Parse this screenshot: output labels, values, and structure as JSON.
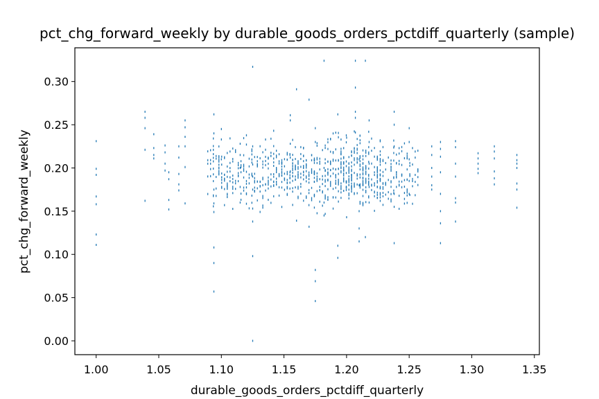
{
  "chart_data": {
    "type": "scatter",
    "title": "pct_chg_forward_weekly by durable_goods_orders_pctdiff_quarterly (sample)",
    "xlabel": "durable_goods_orders_pctdiff_quarterly",
    "ylabel": "pct_chg_forward_weekly",
    "xlim": [
      0.983,
      1.354
    ],
    "ylim": [
      -0.016,
      0.339
    ],
    "xticks": [
      1.0,
      1.05,
      1.1,
      1.15,
      1.2,
      1.25,
      1.3,
      1.35
    ],
    "xtick_labels": [
      "1.00",
      "1.05",
      "1.10",
      "1.15",
      "1.20",
      "1.25",
      "1.30",
      "1.35"
    ],
    "yticks": [
      0.0,
      0.05,
      0.1,
      0.15,
      0.2,
      0.25,
      0.3
    ],
    "ytick_labels": [
      "0.00",
      "0.05",
      "0.10",
      "0.15",
      "0.20",
      "0.25",
      "0.30"
    ],
    "grid": false,
    "marker_color": "#1f77b4",
    "series": [
      {
        "x": [
          1.0,
          1.0,
          1.0,
          1.0,
          1.0,
          1.0,
          1.0,
          1.039,
          1.039,
          1.039,
          1.039,
          1.039,
          1.046,
          1.046,
          1.046,
          1.046,
          1.055,
          1.055,
          1.055,
          1.055,
          1.058,
          1.058,
          1.058,
          1.058,
          1.066,
          1.066,
          1.066,
          1.066,
          1.066,
          1.071,
          1.071,
          1.071,
          1.071,
          1.071,
          1.071,
          1.094,
          1.094,
          1.094,
          1.094,
          1.094,
          1.094,
          1.094,
          1.094,
          1.1,
          1.1,
          1.1,
          1.115,
          1.115,
          1.115,
          1.115,
          1.115,
          1.125,
          1.125,
          1.125,
          1.125,
          1.125,
          1.125,
          1.125,
          1.125,
          1.125,
          1.155,
          1.155,
          1.155,
          1.155,
          1.155,
          1.16,
          1.16,
          1.17,
          1.17,
          1.175,
          1.175,
          1.175,
          1.175,
          1.175,
          1.182,
          1.182,
          1.182,
          1.182,
          1.193,
          1.193,
          1.193,
          1.2,
          1.2,
          1.207,
          1.207,
          1.207,
          1.207,
          1.207,
          1.21,
          1.21,
          1.21,
          1.21,
          1.21,
          1.215,
          1.215,
          1.218,
          1.218,
          1.218,
          1.218,
          1.218,
          1.238,
          1.238,
          1.238,
          1.238,
          1.238,
          1.238,
          1.25,
          1.25,
          1.25,
          1.25,
          1.25,
          1.268,
          1.268,
          1.268,
          1.268,
          1.268,
          1.268,
          1.275,
          1.275,
          1.275,
          1.275,
          1.275,
          1.275,
          1.275,
          1.275,
          1.287,
          1.287,
          1.287,
          1.287,
          1.287,
          1.287,
          1.287,
          1.305,
          1.305,
          1.305,
          1.305,
          1.305,
          1.318,
          1.318,
          1.318,
          1.318,
          1.318,
          1.318,
          1.336,
          1.336,
          1.336,
          1.336,
          1.336,
          1.336,
          1.336
        ],
        "y": [
          0.231,
          0.199,
          0.192,
          0.167,
          0.158,
          0.123,
          0.111,
          0.265,
          0.258,
          0.246,
          0.221,
          0.162,
          0.239,
          0.223,
          0.215,
          0.211,
          0.226,
          0.218,
          0.205,
          0.197,
          0.195,
          0.187,
          0.163,
          0.152,
          0.225,
          0.212,
          0.193,
          0.181,
          0.174,
          0.255,
          0.247,
          0.236,
          0.225,
          0.201,
          0.159,
          0.262,
          0.24,
          0.175,
          0.159,
          0.149,
          0.108,
          0.09,
          0.057,
          0.245,
          0.233,
          0.21,
          0.228,
          0.215,
          0.2,
          0.178,
          0.16,
          0.317,
          0.225,
          0.204,
          0.19,
          0.175,
          0.153,
          0.138,
          0.098,
          0.0,
          0.261,
          0.255,
          0.228,
          0.212,
          0.196,
          0.291,
          0.139,
          0.279,
          0.132,
          0.246,
          0.23,
          0.082,
          0.069,
          0.046,
          0.324,
          0.2,
          0.16,
          0.145,
          0.262,
          0.11,
          0.096,
          0.235,
          0.143,
          0.324,
          0.293,
          0.265,
          0.258,
          0.241,
          0.21,
          0.18,
          0.15,
          0.13,
          0.115,
          0.324,
          0.12,
          0.255,
          0.23,
          0.205,
          0.178,
          0.16,
          0.265,
          0.25,
          0.225,
          0.17,
          0.155,
          0.113,
          0.246,
          0.23,
          0.21,
          0.185,
          0.17,
          0.225,
          0.215,
          0.2,
          0.19,
          0.18,
          0.175,
          0.23,
          0.222,
          0.213,
          0.195,
          0.17,
          0.15,
          0.136,
          0.113,
          0.231,
          0.224,
          0.205,
          0.19,
          0.165,
          0.16,
          0.138,
          0.217,
          0.211,
          0.205,
          0.199,
          0.194,
          0.225,
          0.219,
          0.211,
          0.196,
          0.188,
          0.181,
          0.215,
          0.209,
          0.205,
          0.2,
          0.182,
          0.175,
          0.154
        ]
      }
    ],
    "dense_clusters": [
      {
        "x_from": 1.088,
        "x_to": 1.108,
        "y_center": 0.195,
        "y_spread": 0.017,
        "count": 75
      },
      {
        "x_from": 1.108,
        "x_to": 1.132,
        "y_center": 0.193,
        "y_spread": 0.019,
        "count": 90
      },
      {
        "x_from": 1.132,
        "x_to": 1.158,
        "y_center": 0.195,
        "y_spread": 0.018,
        "count": 130
      },
      {
        "x_from": 1.158,
        "x_to": 1.184,
        "y_center": 0.193,
        "y_spread": 0.018,
        "count": 140
      },
      {
        "x_from": 1.184,
        "x_to": 1.205,
        "y_center": 0.193,
        "y_spread": 0.019,
        "count": 160
      },
      {
        "x_from": 1.205,
        "x_to": 1.228,
        "y_center": 0.195,
        "y_spread": 0.019,
        "count": 170
      },
      {
        "x_from": 1.228,
        "x_to": 1.258,
        "y_center": 0.193,
        "y_spread": 0.017,
        "count": 110
      }
    ]
  }
}
